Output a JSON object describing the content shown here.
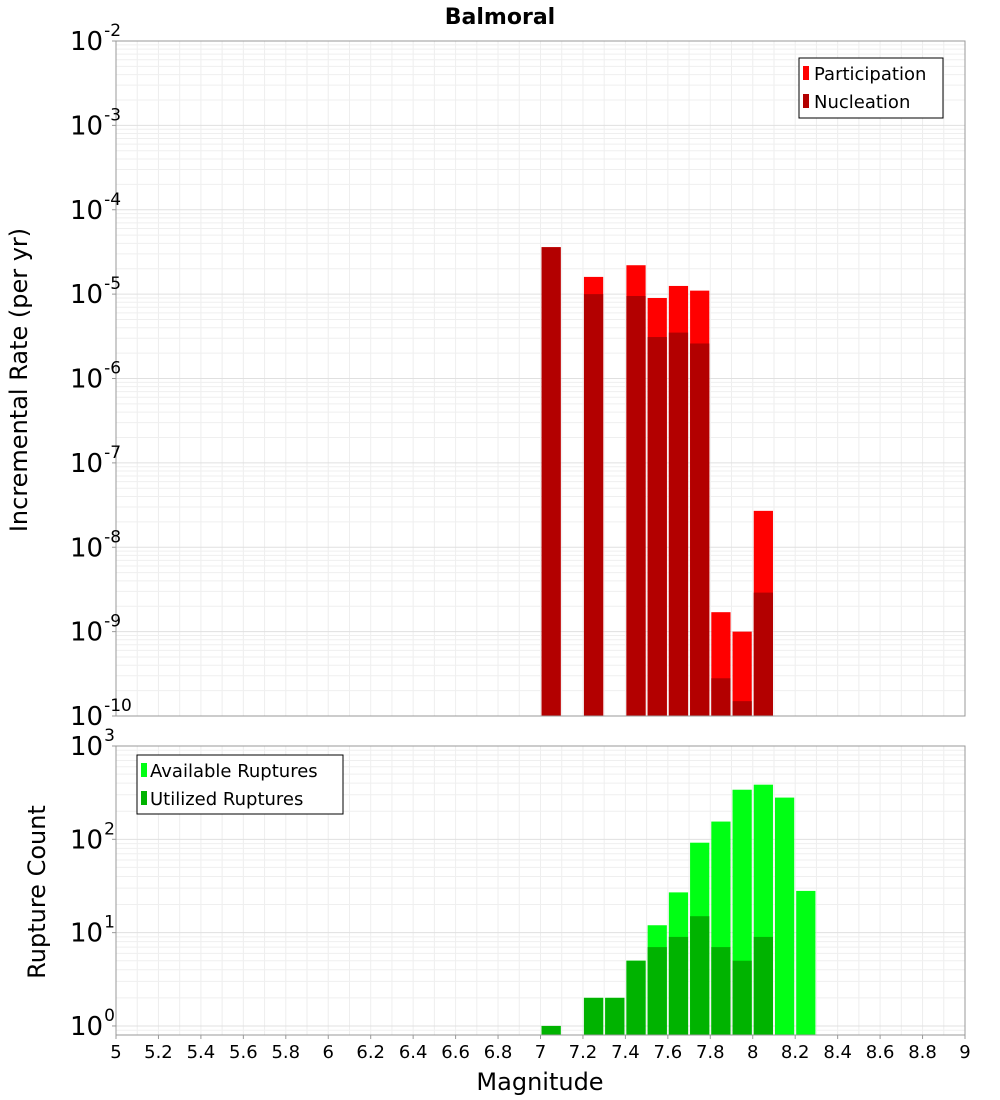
{
  "chart_data": [
    {
      "type": "bar",
      "title": "Balmoral",
      "xlabel": "",
      "ylabel": "Incremental Rate (per yr)",
      "xlim": [
        5,
        9
      ],
      "ylim": [
        1e-10,
        0.01
      ],
      "yscale": "log",
      "bin_width": 0.1,
      "y_tick_exponents": [
        -2,
        -3,
        -4,
        -5,
        -6,
        -7,
        -8,
        -9,
        -10
      ],
      "legend_position": "top-right",
      "colors": {
        "participation": "#ff0000",
        "nucleation": "#b30000"
      },
      "series": [
        {
          "name": "Participation",
          "color": "#ff0000",
          "x": [
            7.05,
            7.25,
            7.45,
            7.55,
            7.65,
            7.75,
            7.85,
            7.95,
            8.05
          ],
          "values": [
            3.6e-05,
            1.6e-05,
            2.2e-05,
            9e-06,
            1.25e-05,
            1.1e-05,
            1.7e-09,
            1e-09,
            2.7e-08
          ]
        },
        {
          "name": "Nucleation",
          "color": "#b30000",
          "x": [
            7.05,
            7.25,
            7.45,
            7.55,
            7.65,
            7.75,
            7.85,
            7.95,
            8.05
          ],
          "values": [
            3.6e-05,
            1e-05,
            9.5e-06,
            3.1e-06,
            3.5e-06,
            2.6e-06,
            2.8e-10,
            1.5e-10,
            2.9e-09
          ]
        }
      ]
    },
    {
      "type": "bar",
      "title": "",
      "xlabel": "Magnitude",
      "ylabel": "Rupture Count",
      "xlim": [
        5,
        9
      ],
      "ylim": [
        0.8,
        1000
      ],
      "yscale": "log",
      "bin_width": 0.1,
      "y_tick_exponents": [
        3,
        2,
        1,
        0
      ],
      "x_ticks": [
        "5",
        "5.2",
        "5.4",
        "5.6",
        "5.8",
        "6",
        "6.2",
        "6.4",
        "6.6",
        "6.8",
        "7",
        "7.2",
        "7.4",
        "7.6",
        "7.8",
        "8",
        "8.2",
        "8.4",
        "8.6",
        "8.8",
        "9"
      ],
      "legend_position": "top-left",
      "colors": {
        "available": "#00ff14",
        "utilized": "#00b300"
      },
      "series": [
        {
          "name": "Available Ruptures",
          "color": "#00ff14",
          "x": [
            7.05,
            7.25,
            7.35,
            7.45,
            7.55,
            7.65,
            7.75,
            7.85,
            7.95,
            8.05,
            8.15,
            8.25
          ],
          "values": [
            1,
            2,
            2,
            5,
            12,
            27,
            92,
            155,
            340,
            385,
            280,
            28
          ]
        },
        {
          "name": "Utilized Ruptures",
          "color": "#00b300",
          "x": [
            7.05,
            7.25,
            7.35,
            7.45,
            7.55,
            7.65,
            7.75,
            7.85,
            7.95,
            8.05
          ],
          "values": [
            1,
            2,
            2,
            5,
            7,
            9,
            15,
            7,
            5,
            9
          ]
        }
      ]
    }
  ]
}
